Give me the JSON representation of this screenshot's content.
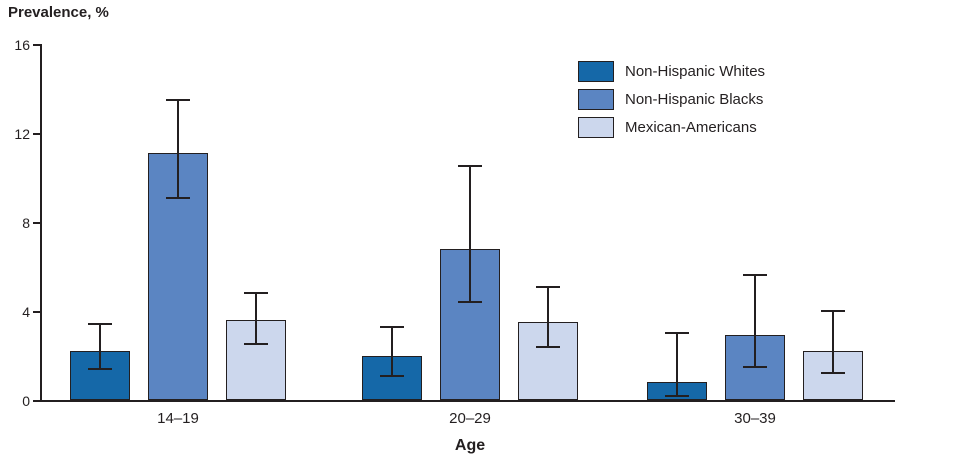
{
  "title": "Prevalence, %",
  "chart_data": {
    "type": "bar",
    "title": "Prevalence, %",
    "xlabel": "Age",
    "ylabel": "Prevalence, %",
    "categories": [
      "14–19",
      "20–29",
      "30–39"
    ],
    "series": [
      {
        "name": "Non-Hispanic Whites",
        "color": "#1568a8",
        "values": [
          2.2,
          2.0,
          0.8
        ],
        "ci_low": [
          1.4,
          1.1,
          0.2
        ],
        "ci_high": [
          3.4,
          3.3,
          3.0
        ]
      },
      {
        "name": "Non-Hispanic Blacks",
        "color": "#5b85c2",
        "values": [
          11.1,
          6.8,
          2.9
        ],
        "ci_low": [
          9.1,
          4.4,
          1.5
        ],
        "ci_high": [
          13.5,
          10.5,
          5.6
        ]
      },
      {
        "name": "Mexican-Americans",
        "color": "#ccd7ed",
        "values": [
          3.6,
          3.5,
          2.2
        ],
        "ci_low": [
          2.5,
          2.4,
          1.2
        ],
        "ci_high": [
          4.8,
          5.1,
          4.0
        ]
      }
    ],
    "ylim": [
      0,
      16
    ],
    "yticks": [
      0,
      4,
      8,
      12,
      16
    ],
    "grid": false,
    "legend_position": "top-right",
    "axis_color": "#231f20"
  }
}
